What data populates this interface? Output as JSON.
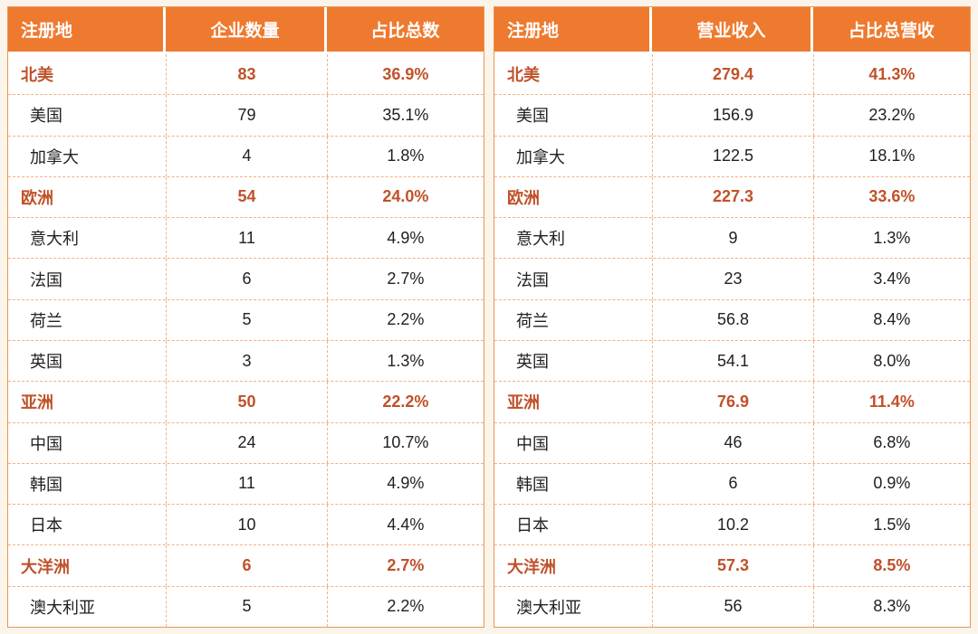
{
  "style": {
    "page_bg": "#FBF4EA",
    "cell_bg": "#FFFFFF",
    "header_bg": "#EE7A2F",
    "header_text": "#FFFFFF",
    "region_text": "#C05129",
    "country_text": "#212121",
    "dashed_border": "#F2B183",
    "outer_border": "#E99650"
  },
  "region_labels": [
    "北美",
    "欧洲",
    "亚洲",
    "大洋洲"
  ],
  "chart_data": [
    {
      "type": "table",
      "columns": [
        "注册地",
        "企业数量",
        "占比总数"
      ],
      "rows": [
        [
          "北美",
          83,
          "36.9%"
        ],
        [
          "美国",
          79,
          "35.1%"
        ],
        [
          "加拿大",
          4,
          "1.8%"
        ],
        [
          "欧洲",
          54,
          "24.0%"
        ],
        [
          "意大利",
          11,
          "4.9%"
        ],
        [
          "法国",
          6,
          "2.7%"
        ],
        [
          "荷兰",
          5,
          "2.2%"
        ],
        [
          "英国",
          3,
          "1.3%"
        ],
        [
          "亚洲",
          50,
          "22.2%"
        ],
        [
          "中国",
          24,
          "10.7%"
        ],
        [
          "韩国",
          11,
          "4.9%"
        ],
        [
          "日本",
          10,
          "4.4%"
        ],
        [
          "大洋洲",
          6,
          "2.7%"
        ],
        [
          "澳大利亚",
          5,
          "2.2%"
        ]
      ]
    },
    {
      "type": "table",
      "columns": [
        "注册地",
        "营业收入",
        "占比总营收"
      ],
      "rows": [
        [
          "北美",
          279.4,
          "41.3%"
        ],
        [
          "美国",
          156.9,
          "23.2%"
        ],
        [
          "加拿大",
          122.5,
          "18.1%"
        ],
        [
          "欧洲",
          227.3,
          "33.6%"
        ],
        [
          "意大利",
          9,
          "1.3%"
        ],
        [
          "法国",
          23,
          "3.4%"
        ],
        [
          "荷兰",
          56.8,
          "8.4%"
        ],
        [
          "英国",
          54.1,
          "8.0%"
        ],
        [
          "亚洲",
          76.9,
          "11.4%"
        ],
        [
          "中国",
          46,
          "6.8%"
        ],
        [
          "韩国",
          6,
          "0.9%"
        ],
        [
          "日本",
          10.2,
          "1.5%"
        ],
        [
          "大洋洲",
          57.3,
          "8.5%"
        ],
        [
          "澳大利亚",
          56,
          "8.3%"
        ]
      ]
    }
  ]
}
